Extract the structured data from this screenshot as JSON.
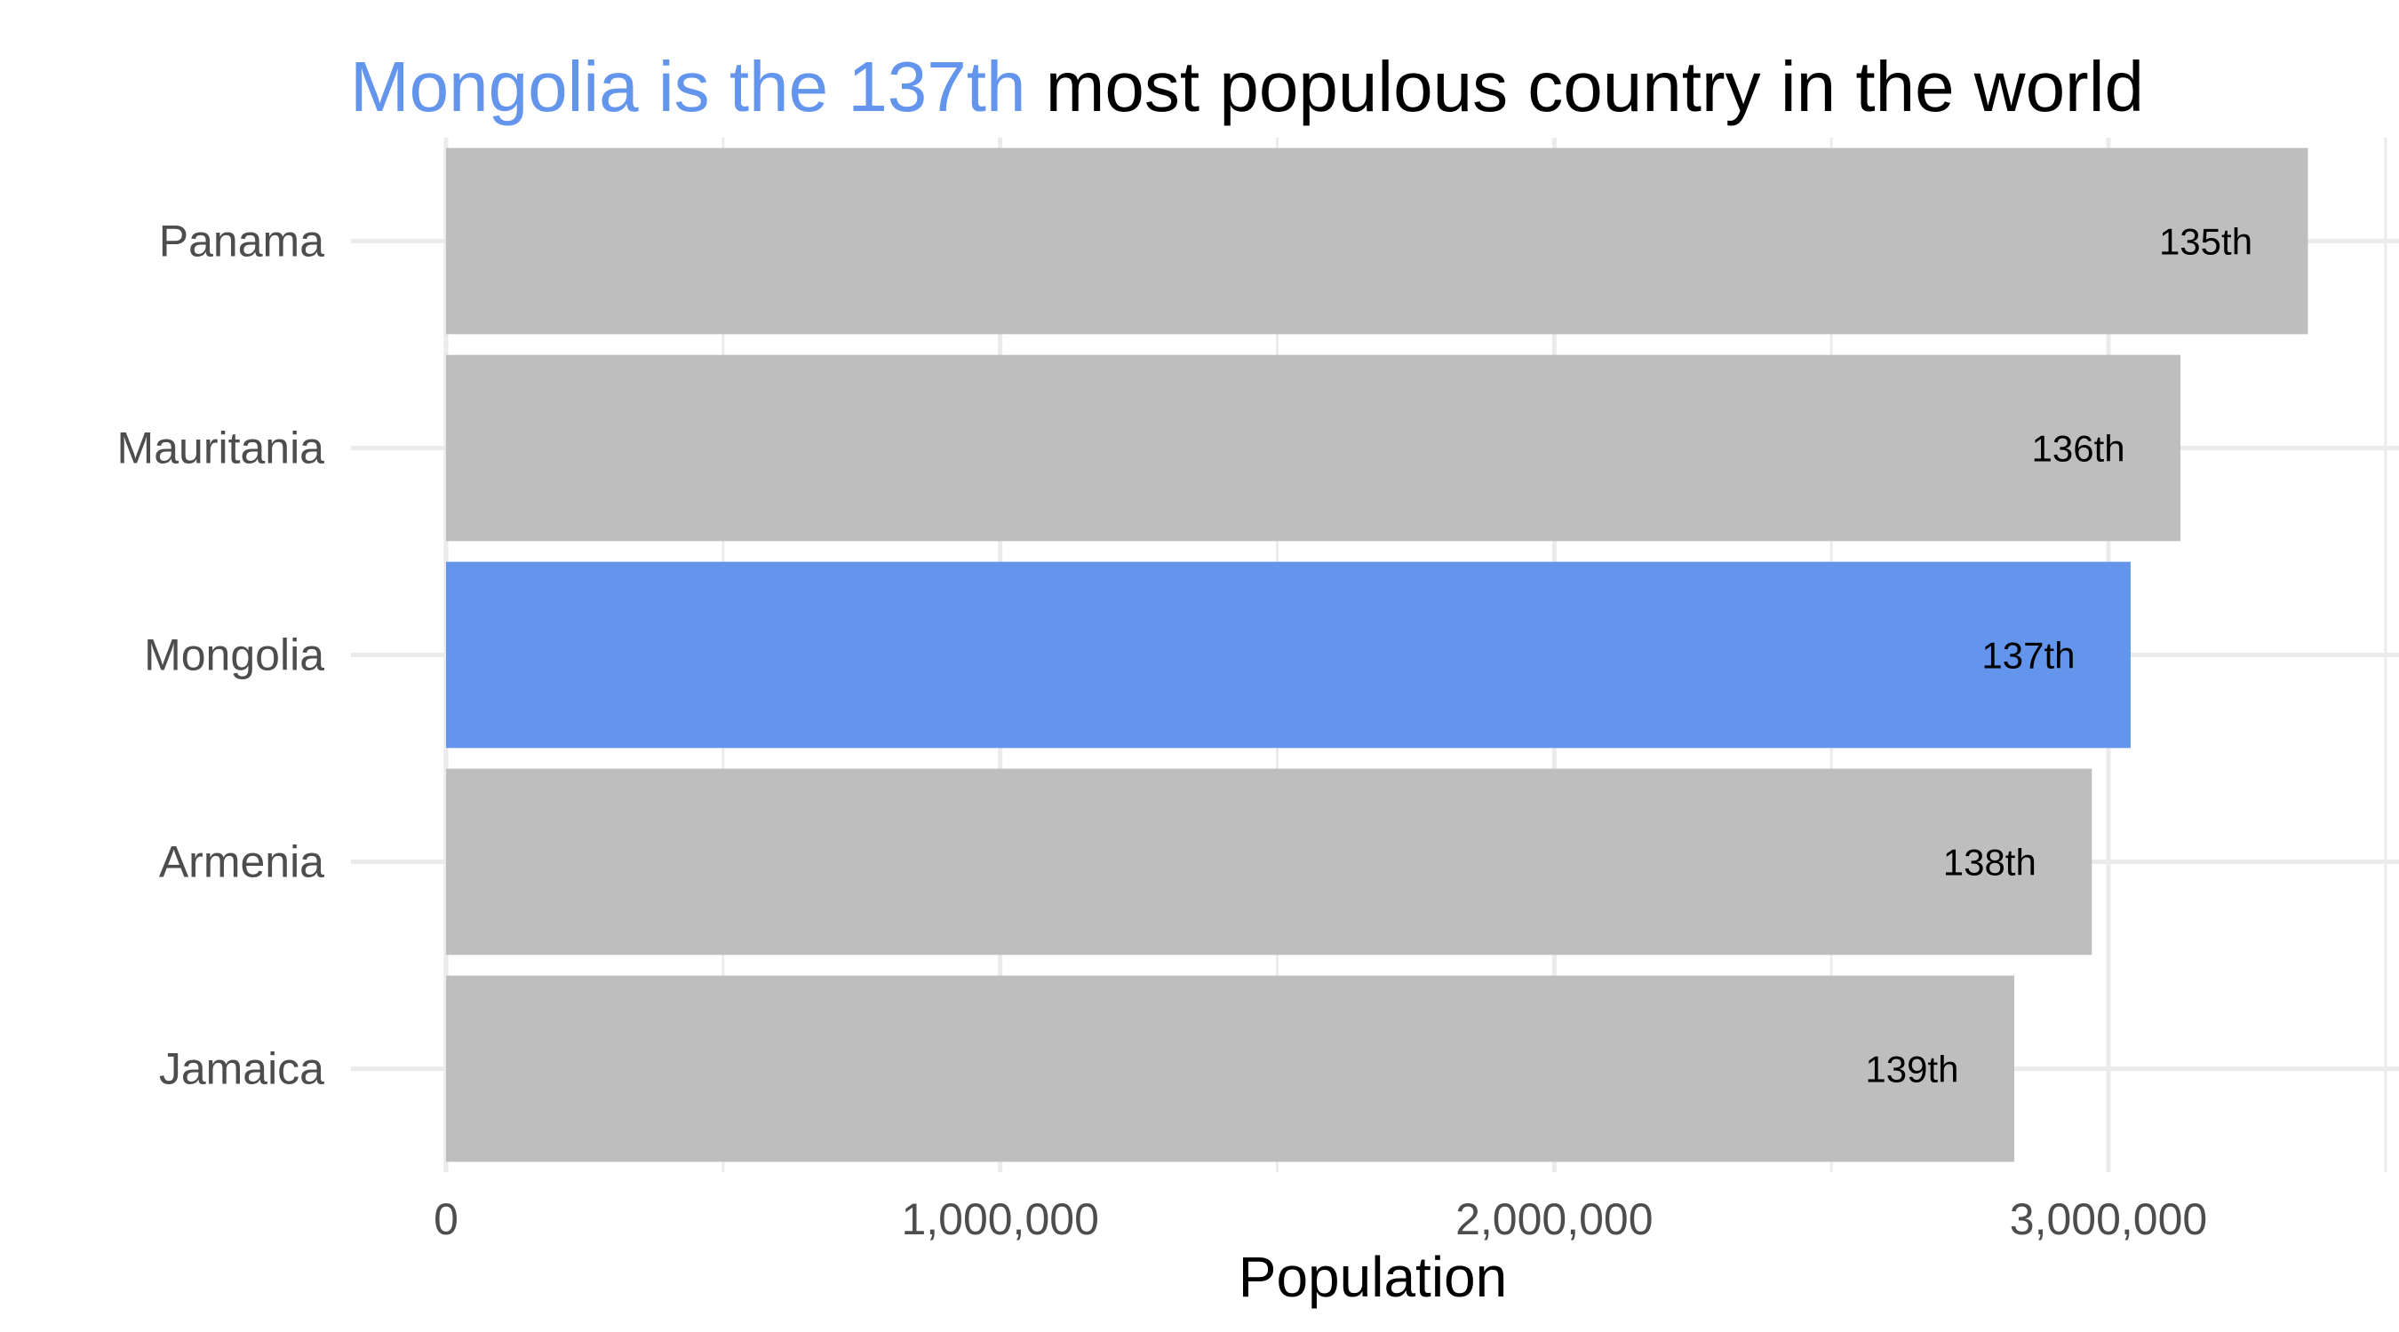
{
  "chart_data": {
    "type": "bar",
    "orientation": "horizontal",
    "title": {
      "highlight": "Mongolia is the 137th",
      "rest": "most populous country in the world"
    },
    "xlabel": "Population",
    "ylabel": "",
    "xlim": [
      0,
      3500000
    ],
    "xticks": [
      {
        "value": 0,
        "label": "0"
      },
      {
        "value": 1000000,
        "label": "1,000,000"
      },
      {
        "value": 2000000,
        "label": "2,000,000"
      },
      {
        "value": 3000000,
        "label": "3,000,000"
      }
    ],
    "categories": [
      "Panama",
      "Mauritania",
      "Mongolia",
      "Armenia",
      "Jamaica"
    ],
    "values": [
      3360000,
      3130000,
      3040000,
      2970000,
      2830000
    ],
    "labels": [
      "135th",
      "136th",
      "137th",
      "138th",
      "139th"
    ],
    "highlight_category": "Mongolia",
    "colors": {
      "highlight": "#6495ED",
      "default": "#BEBEBE",
      "grid": "#EBEBEB"
    },
    "grid": true,
    "legend": "none"
  }
}
